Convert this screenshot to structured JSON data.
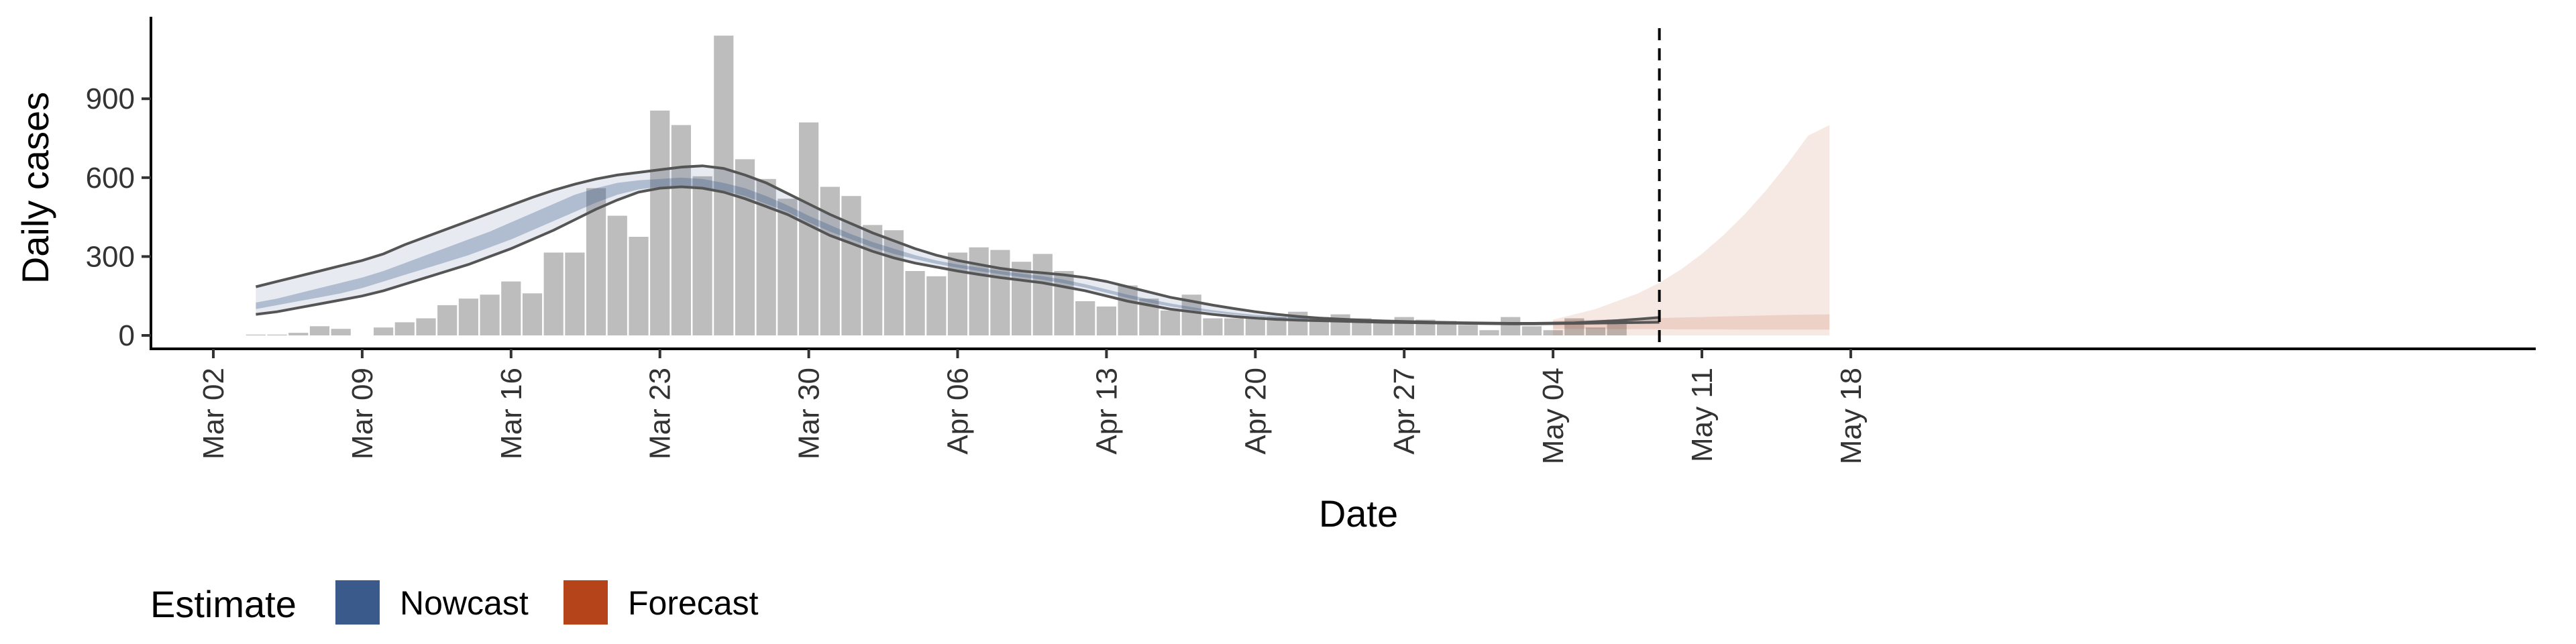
{
  "chart_data": {
    "type": "bar",
    "xlabel": "Date",
    "ylabel": "Daily cases",
    "ylim": [
      0,
      1200
    ],
    "y_ticks": [
      0,
      300,
      600,
      900
    ],
    "x_ticks": [
      "Mar 02",
      "Mar 09",
      "Mar 16",
      "Mar 23",
      "Mar 30",
      "Apr 06",
      "Apr 13",
      "Apr 20",
      "Apr 27",
      "May 04",
      "May 11",
      "May 18"
    ],
    "x_range": [
      "2020-03-02",
      "2020-05-18"
    ],
    "grid": false,
    "vline_date": "2020-05-09",
    "bars": {
      "color": "#bdbdbd",
      "start_date": "2020-03-04",
      "values": [
        3,
        3,
        10,
        35,
        25,
        0,
        30,
        50,
        65,
        115,
        140,
        155,
        205,
        160,
        315,
        315,
        560,
        455,
        375,
        855,
        800,
        605,
        1140,
        670,
        595,
        520,
        810,
        565,
        530,
        420,
        400,
        245,
        225,
        315,
        335,
        325,
        280,
        310,
        245,
        130,
        110,
        190,
        140,
        95,
        155,
        65,
        65,
        70,
        70,
        90,
        70,
        80,
        65,
        55,
        70,
        60,
        55,
        40,
        20,
        70,
        35,
        20,
        65,
        30,
        60
      ]
    },
    "nowcast": {
      "color": "#3b5a8c",
      "start_date": "2020-03-04",
      "outer_upper": [
        185,
        205,
        225,
        245,
        265,
        285,
        310,
        345,
        375,
        405,
        435,
        465,
        495,
        525,
        552,
        575,
        595,
        610,
        620,
        630,
        640,
        645,
        635,
        610,
        580,
        540,
        500,
        460,
        425,
        390,
        360,
        330,
        305,
        285,
        270,
        255,
        245,
        238,
        230,
        220,
        205,
        185,
        165,
        145,
        130,
        115,
        102,
        90,
        80,
        72,
        66,
        62,
        58,
        55,
        53,
        51,
        49,
        48,
        47,
        46,
        46,
        47,
        48,
        52,
        56,
        62,
        68
      ],
      "outer_lower": [
        80,
        90,
        105,
        120,
        135,
        150,
        170,
        195,
        220,
        245,
        270,
        300,
        330,
        365,
        400,
        440,
        480,
        515,
        545,
        560,
        565,
        560,
        545,
        520,
        490,
        460,
        420,
        380,
        350,
        320,
        295,
        275,
        260,
        245,
        232,
        220,
        210,
        200,
        185,
        170,
        150,
        130,
        115,
        100,
        90,
        80,
        72,
        66,
        61,
        58,
        56,
        54,
        52,
        50,
        49,
        48,
        47,
        46,
        45,
        44,
        44,
        45,
        46,
        47,
        48,
        49,
        50
      ],
      "inner_upper": [
        125,
        140,
        160,
        180,
        200,
        220,
        245,
        275,
        305,
        335,
        365,
        395,
        430,
        465,
        500,
        535,
        560,
        580,
        590,
        595,
        600,
        595,
        580,
        560,
        530,
        495,
        455,
        420,
        385,
        355,
        330,
        305,
        285,
        270,
        258,
        245,
        235,
        225,
        212,
        195,
        175,
        155,
        138,
        122,
        108,
        96,
        86,
        78,
        72,
        67,
        63,
        60,
        57,
        54,
        52,
        50,
        49,
        48,
        47,
        46,
        45,
        46,
        47,
        48,
        50,
        52,
        55
      ],
      "inner_lower": [
        100,
        115,
        130,
        145,
        160,
        180,
        205,
        230,
        255,
        280,
        305,
        335,
        365,
        400,
        435,
        470,
        505,
        535,
        555,
        565,
        570,
        565,
        550,
        530,
        500,
        470,
        430,
        395,
        365,
        335,
        310,
        290,
        272,
        258,
        245,
        233,
        222,
        212,
        198,
        182,
        162,
        142,
        125,
        110,
        98,
        88,
        79,
        72,
        67,
        63,
        60,
        57,
        55,
        52,
        51,
        49,
        48,
        47,
        46,
        45,
        45,
        45,
        46,
        47,
        48,
        49,
        50
      ]
    },
    "forecast": {
      "color": "#b5441a",
      "start_date": "2020-05-04",
      "outer_upper": [
        60,
        80,
        100,
        130,
        160,
        200,
        250,
        310,
        380,
        460,
        550,
        650,
        760,
        800
      ],
      "outer_lower": [
        0,
        0,
        0,
        0,
        0,
        0,
        0,
        0,
        0,
        0,
        0,
        0,
        0,
        0
      ],
      "inner_upper": [
        55,
        58,
        60,
        62,
        64,
        66,
        68,
        70,
        72,
        74,
        76,
        78,
        79,
        80
      ],
      "inner_lower": [
        25,
        25,
        25,
        24,
        24,
        24,
        23,
        23,
        23,
        22,
        22,
        22,
        22,
        22
      ]
    },
    "legend": {
      "title": "Estimate",
      "position": "bottom-left",
      "items": [
        {
          "label": "Nowcast",
          "color": "#3b5a8c"
        },
        {
          "label": "Forecast",
          "color": "#b5441a"
        }
      ]
    }
  }
}
